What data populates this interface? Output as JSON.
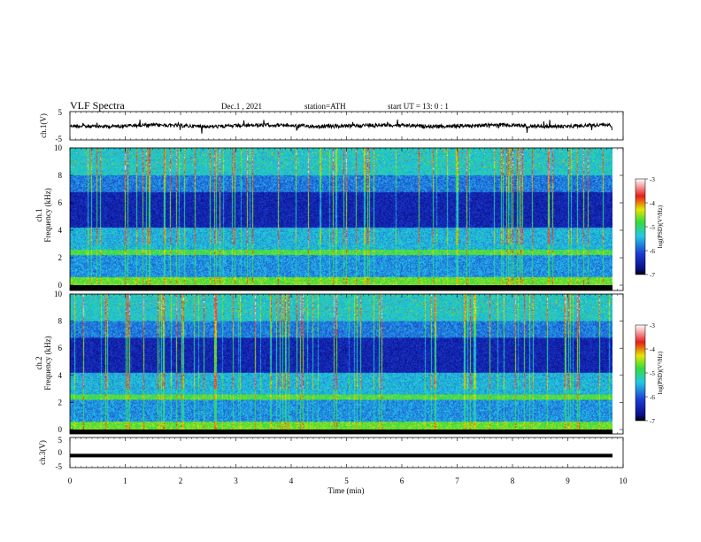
{
  "header": {
    "title": "VLF  Spectra",
    "date": "Dec.1  , 2021",
    "station": "station=ATH",
    "start": "start  UT  =   13: 0   : 1"
  },
  "chart_data": [
    {
      "type": "line",
      "panel": "ch1",
      "ylabel": "ch.1(V)",
      "ylim": [
        -5,
        5
      ],
      "yticks": [
        "5",
        "-5"
      ],
      "description_of_signal": "noisy waveform centered near zero",
      "x_range_min": [
        0,
        10
      ]
    },
    {
      "type": "heatmap",
      "panel": "spec1",
      "ylabel_channel": "ch.1",
      "ylabel": "Frequency  (kHz)",
      "ylim": [
        0,
        10
      ],
      "yticks": [
        "0",
        "2",
        "4",
        "6",
        "8",
        "10"
      ],
      "colorbar": {
        "label": "log(PSD)(V²/Hz)",
        "range": [
          -7,
          -3
        ],
        "ticks": [
          "-3",
          "-4",
          "-5",
          "-6",
          "-7"
        ]
      },
      "x_range_min": [
        0,
        10
      ],
      "data_extent_min": 9.8
    },
    {
      "type": "heatmap",
      "panel": "spec2",
      "ylabel_channel": "ch.2",
      "ylabel": "Frequency  (kHz)",
      "ylim": [
        0,
        10
      ],
      "yticks": [
        "0",
        "2",
        "4",
        "6",
        "8",
        "10"
      ],
      "colorbar": {
        "label": "log(PSD)(V²/Hz)",
        "range": [
          -7,
          -3
        ],
        "ticks": [
          "-3",
          "-4",
          "-5",
          "-6",
          "-7"
        ]
      },
      "x_range_min": [
        0,
        10
      ],
      "data_extent_min": 9.8
    },
    {
      "type": "line",
      "panel": "ch3",
      "ylabel": "ch.3(V)",
      "ylim": [
        -5,
        5
      ],
      "yticks": [
        "5",
        "0",
        "-5"
      ],
      "level": -1,
      "x_range_min": [
        0,
        10
      ]
    }
  ],
  "xaxis": {
    "label": "Time  (min)",
    "ticks": [
      "0",
      "1",
      "2",
      "3",
      "4",
      "5",
      "6",
      "7",
      "8",
      "9",
      "10"
    ]
  },
  "colors": {
    "deep_blue": "#0a1a8c",
    "mid_blue": "#1e3cd2",
    "cyan": "#22c8e6",
    "green": "#36dc3c",
    "yellow": "#e6e600",
    "red": "#e61e1e"
  }
}
